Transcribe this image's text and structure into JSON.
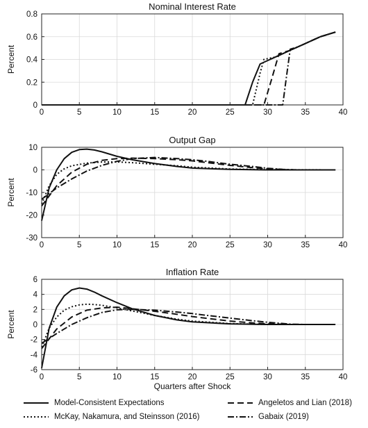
{
  "figure": {
    "xlabel": "Quarters after Shock"
  },
  "legend": [
    {
      "key": "mce",
      "label": "Model-Consistent Expectations",
      "dash": "none"
    },
    {
      "key": "al",
      "label": "Angeletos and Lian (2018)",
      "dash": "9,5"
    },
    {
      "key": "mns",
      "label": "McKay, Nakamura, and Steinsson (2016)",
      "dash": "2,3"
    },
    {
      "key": "gab",
      "label": "Gabaix (2019)",
      "dash": "9,3,2,3"
    }
  ],
  "chart_data": [
    {
      "type": "line",
      "title": "Nominal Interest Rate",
      "ylabel": "Percent",
      "xlim": [
        0,
        40
      ],
      "ylim": [
        0,
        0.8
      ],
      "xticks": [
        0,
        5,
        10,
        15,
        20,
        25,
        30,
        35,
        40
      ],
      "yticks": [
        0,
        0.2,
        0.4,
        0.6,
        0.8
      ],
      "grid": true,
      "series": [
        {
          "name": "Model-Consistent Expectations",
          "dash": "none",
          "points": [
            [
              0,
              0
            ],
            [
              27,
              0
            ],
            [
              28,
              0.2
            ],
            [
              29,
              0.36
            ],
            [
              30,
              0.39
            ],
            [
              31,
              0.42
            ],
            [
              32,
              0.45
            ],
            [
              33,
              0.48
            ],
            [
              34,
              0.51
            ],
            [
              35,
              0.54
            ],
            [
              36,
              0.57
            ],
            [
              37,
              0.6
            ],
            [
              38,
              0.62
            ],
            [
              39,
              0.64
            ]
          ]
        },
        {
          "name": "McKay, Nakamura, and Steinsson (2016)",
          "dash": "2,3",
          "points": [
            [
              0,
              0
            ],
            [
              28,
              0
            ],
            [
              29,
              0.28
            ],
            [
              29.5,
              0.4
            ],
            [
              31,
              0.42
            ],
            [
              32,
              0.45
            ],
            [
              33,
              0.48
            ],
            [
              34,
              0.51
            ],
            [
              35,
              0.54
            ],
            [
              36,
              0.57
            ],
            [
              37,
              0.6
            ],
            [
              38,
              0.62
            ],
            [
              39,
              0.64
            ]
          ]
        },
        {
          "name": "Angeletos and Lian (2018)",
          "dash": "9,5",
          "points": [
            [
              0,
              0
            ],
            [
              29.5,
              0
            ],
            [
              30.5,
              0.22
            ],
            [
              31.5,
              0.45
            ],
            [
              32,
              0.46
            ],
            [
              33,
              0.48
            ],
            [
              34,
              0.51
            ],
            [
              35,
              0.54
            ],
            [
              36,
              0.57
            ],
            [
              37,
              0.6
            ],
            [
              38,
              0.62
            ],
            [
              39,
              0.64
            ]
          ]
        },
        {
          "name": "Gabaix (2019)",
          "dash": "9,3,2,3",
          "points": [
            [
              0,
              0
            ],
            [
              32,
              0
            ],
            [
              32.5,
              0.25
            ],
            [
              33,
              0.49
            ],
            [
              34,
              0.51
            ],
            [
              35,
              0.54
            ],
            [
              36,
              0.57
            ],
            [
              37,
              0.6
            ],
            [
              38,
              0.62
            ],
            [
              39,
              0.64
            ]
          ]
        }
      ]
    },
    {
      "type": "line",
      "title": "Output Gap",
      "ylabel": "Percent",
      "xlim": [
        0,
        40
      ],
      "ylim": [
        -30,
        10
      ],
      "xticks": [
        0,
        5,
        10,
        15,
        20,
        25,
        30,
        35,
        40
      ],
      "yticks": [
        -30,
        -20,
        -10,
        0,
        10
      ],
      "grid": true,
      "series": [
        {
          "name": "Model-Consistent Expectations",
          "dash": "none",
          "points": [
            [
              0,
              -22.5
            ],
            [
              1,
              -8
            ],
            [
              2,
              0
            ],
            [
              3,
              5
            ],
            [
              4,
              7.8
            ],
            [
              5,
              9
            ],
            [
              6,
              9.2
            ],
            [
              7,
              8.8
            ],
            [
              8,
              8
            ],
            [
              10,
              6
            ],
            [
              12,
              4.5
            ],
            [
              15,
              2.8
            ],
            [
              18,
              1.5
            ],
            [
              20,
              0.8
            ],
            [
              25,
              0.2
            ],
            [
              30,
              0
            ],
            [
              39,
              0
            ]
          ]
        },
        {
          "name": "McKay, Nakamura, and Steinsson (2016)",
          "dash": "2,3",
          "points": [
            [
              0,
              -15
            ],
            [
              1,
              -7
            ],
            [
              2,
              -2
            ],
            [
              3,
              0.5
            ],
            [
              4,
              1.8
            ],
            [
              6,
              3
            ],
            [
              8,
              3.5
            ],
            [
              10,
              3.5
            ],
            [
              12,
              3.2
            ],
            [
              15,
              2.5
            ],
            [
              18,
              1.8
            ],
            [
              20,
              1.2
            ],
            [
              25,
              0.4
            ],
            [
              30,
              0.1
            ],
            [
              39,
              0
            ]
          ]
        },
        {
          "name": "Angeletos and Lian (2018)",
          "dash": "9,5",
          "points": [
            [
              0,
              -16
            ],
            [
              2,
              -7
            ],
            [
              4,
              -1
            ],
            [
              6,
              2.5
            ],
            [
              8,
              4.2
            ],
            [
              10,
              5
            ],
            [
              12,
              5.2
            ],
            [
              15,
              5
            ],
            [
              18,
              4.5
            ],
            [
              20,
              4
            ],
            [
              22,
              3.2
            ],
            [
              25,
              2
            ],
            [
              28,
              1
            ],
            [
              30,
              0.5
            ],
            [
              33,
              0
            ],
            [
              39,
              0
            ]
          ]
        },
        {
          "name": "Gabaix (2019)",
          "dash": "9,3,2,3",
          "points": [
            [
              0,
              -13
            ],
            [
              2,
              -8
            ],
            [
              4,
              -4
            ],
            [
              6,
              -0.5
            ],
            [
              8,
              2
            ],
            [
              10,
              3.8
            ],
            [
              12,
              5
            ],
            [
              15,
              5.5
            ],
            [
              18,
              5
            ],
            [
              20,
              4.5
            ],
            [
              22,
              3.8
            ],
            [
              25,
              2.5
            ],
            [
              28,
              1.5
            ],
            [
              30,
              0.7
            ],
            [
              32,
              0.2
            ],
            [
              34,
              0
            ],
            [
              39,
              0
            ]
          ]
        }
      ]
    },
    {
      "type": "line",
      "title": "Inflation Rate",
      "ylabel": "Percent",
      "xlim": [
        0,
        40
      ],
      "ylim": [
        -6,
        6
      ],
      "xticks": [
        0,
        5,
        10,
        15,
        20,
        25,
        30,
        35,
        40
      ],
      "yticks": [
        -6,
        -4,
        -2,
        0,
        2,
        4,
        6
      ],
      "grid": true,
      "series": [
        {
          "name": "Model-Consistent Expectations",
          "dash": "none",
          "points": [
            [
              0,
              -5.8
            ],
            [
              1,
              -0.5
            ],
            [
              2,
              2.3
            ],
            [
              3,
              3.8
            ],
            [
              4,
              4.6
            ],
            [
              5,
              4.85
            ],
            [
              6,
              4.7
            ],
            [
              7,
              4.3
            ],
            [
              8,
              3.8
            ],
            [
              10,
              2.9
            ],
            [
              12,
              2.1
            ],
            [
              15,
              1.2
            ],
            [
              18,
              0.6
            ],
            [
              20,
              0.35
            ],
            [
              25,
              0.08
            ],
            [
              30,
              0
            ],
            [
              39,
              0
            ]
          ]
        },
        {
          "name": "McKay, Nakamura, and Steinsson (2016)",
          "dash": "2,3",
          "points": [
            [
              0,
              -3
            ],
            [
              1,
              -0.5
            ],
            [
              2,
              1
            ],
            [
              3,
              1.9
            ],
            [
              4,
              2.35
            ],
            [
              5,
              2.6
            ],
            [
              6,
              2.7
            ],
            [
              7,
              2.65
            ],
            [
              8,
              2.55
            ],
            [
              10,
              2.2
            ],
            [
              12,
              1.8
            ],
            [
              15,
              1.2
            ],
            [
              18,
              0.7
            ],
            [
              20,
              0.45
            ],
            [
              25,
              0.12
            ],
            [
              30,
              0
            ],
            [
              39,
              0
            ]
          ]
        },
        {
          "name": "Angeletos and Lian (2018)",
          "dash": "9,5",
          "points": [
            [
              0,
              -3.2
            ],
            [
              2,
              -0.6
            ],
            [
              4,
              1
            ],
            [
              6,
              1.9
            ],
            [
              8,
              2.2
            ],
            [
              10,
              2.3
            ],
            [
              12,
              2.1
            ],
            [
              15,
              1.75
            ],
            [
              18,
              1.35
            ],
            [
              20,
              1.05
            ],
            [
              22,
              0.8
            ],
            [
              25,
              0.45
            ],
            [
              28,
              0.2
            ],
            [
              30,
              0.1
            ],
            [
              33,
              0
            ],
            [
              39,
              0
            ]
          ]
        },
        {
          "name": "Gabaix (2019)",
          "dash": "9,3,2,3",
          "points": [
            [
              0,
              -2.5
            ],
            [
              2,
              -1.2
            ],
            [
              4,
              0
            ],
            [
              6,
              0.9
            ],
            [
              8,
              1.6
            ],
            [
              10,
              1.95
            ],
            [
              12,
              2
            ],
            [
              15,
              1.9
            ],
            [
              18,
              1.65
            ],
            [
              20,
              1.45
            ],
            [
              22,
              1.2
            ],
            [
              25,
              0.85
            ],
            [
              28,
              0.5
            ],
            [
              30,
              0.3
            ],
            [
              33,
              0.05
            ],
            [
              35,
              0
            ],
            [
              39,
              0
            ]
          ]
        }
      ]
    }
  ]
}
